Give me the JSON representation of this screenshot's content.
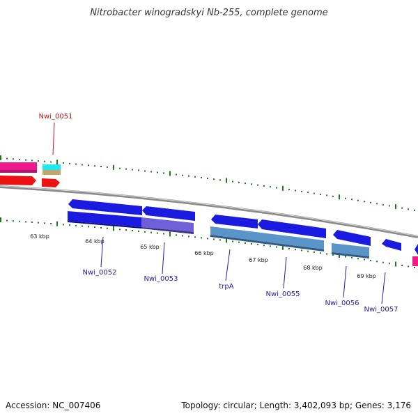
{
  "title": "Nitrobacter winogradskyi Nb-255, complete genome",
  "footer": {
    "accession": "Accession: NC_007406",
    "summary": "Topology: circular; Length: 3,402,093 bp; Genes: 3,176"
  },
  "colors": {
    "backbone": "#8a8a8a",
    "tick": "#1f7a1f",
    "label_blue": "#1a1ab3",
    "label_red": "#cc1111"
  },
  "scale_labels": [
    "63 kbp",
    "64 kbp",
    "65 kbp",
    "66 kbp",
    "67 kbp",
    "68 kbp",
    "69 kbp"
  ],
  "gene_labels": [
    {
      "text": "Nwi_0051",
      "color": "#cc1111"
    },
    {
      "text": "Nwi_0052",
      "color": "#1a1ab3"
    },
    {
      "text": "Nwi_0053",
      "color": "#1a1ab3"
    },
    {
      "text": "trpA",
      "color": "#1a1ab3"
    },
    {
      "text": "Nwi_0055",
      "color": "#1a1ab3"
    },
    {
      "text": "Nwi_0056",
      "color": "#1a1ab3"
    },
    {
      "text": "Nwi_0057",
      "color": "#1a1ab3"
    }
  ]
}
